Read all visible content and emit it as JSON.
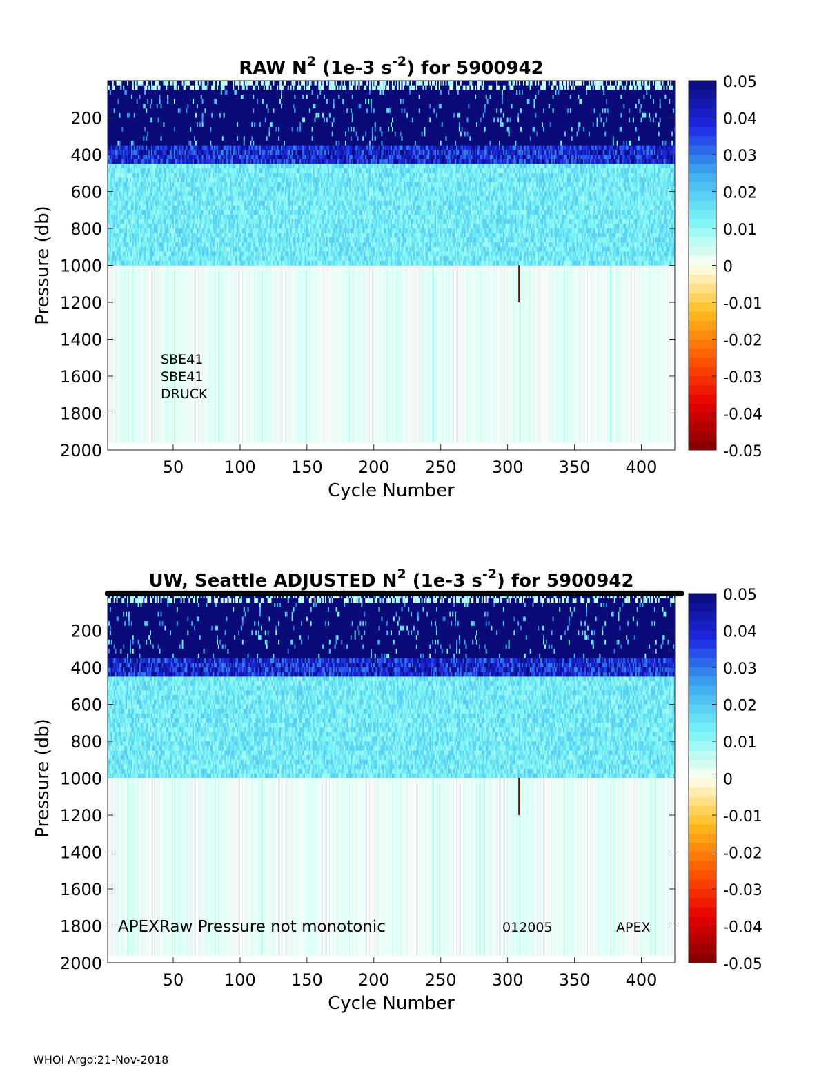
{
  "footer": "WHOI Argo:21-Nov-2018",
  "chart_data": [
    {
      "type": "heatmap",
      "title": "RAW N² (1e-3 s⁻²) for 5900942",
      "title_parts": {
        "a": "RAW N",
        "sup1": "2",
        "b": " (1e-3 s",
        "sup2": "-2",
        "c": ") for 5900942"
      },
      "xlabel": "Cycle Number",
      "ylabel": "Pressure (db)",
      "xlim": [
        1,
        425
      ],
      "ylim": [
        2000,
        0
      ],
      "y_reversed": true,
      "xticks": [
        50,
        100,
        150,
        200,
        250,
        300,
        350,
        400
      ],
      "yticks": [
        200,
        400,
        600,
        800,
        1000,
        1200,
        1400,
        1600,
        1800,
        2000
      ],
      "colorbar": {
        "colormap": "jet-diverging",
        "clim": [
          -0.05,
          0.05
        ],
        "ticks": [
          0.05,
          0.04,
          0.03,
          0.02,
          0.01,
          0,
          -0.01,
          -0.02,
          -0.03,
          -0.04,
          -0.05
        ]
      },
      "annotations": [
        "SBE41",
        "SBE41",
        "DRUCK"
      ],
      "pressure_bands": [
        {
          "from": 0,
          "to": 50,
          "n2": 0.005
        },
        {
          "from": 50,
          "to": 350,
          "n2": 0.05
        },
        {
          "from": 350,
          "to": 450,
          "n2": 0.035
        },
        {
          "from": 450,
          "to": 1000,
          "n2": 0.012
        },
        {
          "from": 1000,
          "to": 2000,
          "n2": 0.004
        }
      ],
      "profile_top_row": false
    },
    {
      "type": "heatmap",
      "title": "UW, Seattle  ADJUSTED N² (1e-3 s⁻²) for 5900942",
      "title_parts": {
        "a": "UW, Seattle  ADJUSTED N",
        "sup1": "2",
        "b": " (1e-3 s",
        "sup2": "-2",
        "c": ") for 5900942"
      },
      "xlabel": "Cycle Number",
      "ylabel": "Pressure (db)",
      "xlim": [
        1,
        425
      ],
      "ylim": [
        2000,
        0
      ],
      "y_reversed": true,
      "xticks": [
        50,
        100,
        150,
        200,
        250,
        300,
        350,
        400
      ],
      "yticks": [
        200,
        400,
        600,
        800,
        1000,
        1200,
        1400,
        1600,
        1800,
        2000
      ],
      "colorbar": {
        "colormap": "jet-diverging",
        "clim": [
          -0.05,
          0.05
        ],
        "ticks": [
          0.05,
          0.04,
          0.03,
          0.02,
          0.01,
          0,
          -0.01,
          -0.02,
          -0.03,
          -0.04,
          -0.05
        ]
      },
      "annotations": [
        "APEXRaw Pressure not monotonic",
        "012005",
        "APEX"
      ],
      "pressure_bands": [
        {
          "from": 0,
          "to": 50,
          "n2": 0.005
        },
        {
          "from": 50,
          "to": 350,
          "n2": 0.05
        },
        {
          "from": 350,
          "to": 450,
          "n2": 0.035
        },
        {
          "from": 450,
          "to": 1000,
          "n2": 0.012
        },
        {
          "from": 1000,
          "to": 2000,
          "n2": 0.004
        }
      ],
      "profile_top_row": true
    }
  ]
}
